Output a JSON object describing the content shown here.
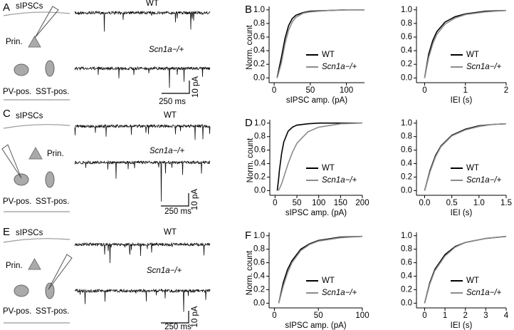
{
  "chart_data": [
    {
      "type": "line",
      "label": "B",
      "ylabel": "Norm. count",
      "xlabel": "sIPSC amp. (pA)",
      "x": [
        4,
        5,
        10,
        15,
        20,
        25,
        30,
        40,
        50,
        75,
        100,
        125
      ],
      "series": [
        {
          "name": "WT",
          "color": "#000000",
          "values": [
            0,
            0.05,
            0.3,
            0.58,
            0.77,
            0.87,
            0.92,
            0.96,
            0.98,
            0.99,
            1,
            1
          ]
        },
        {
          "name": "Scn1a−/+",
          "color": "#8c8c8c",
          "values": [
            0,
            0.03,
            0.22,
            0.5,
            0.7,
            0.82,
            0.89,
            0.95,
            0.97,
            0.99,
            1,
            1
          ]
        }
      ],
      "xlim": [
        -7,
        125
      ],
      "xticks": [
        0,
        50,
        100
      ],
      "ylim": [
        -0.07,
        1.05
      ],
      "yticks": [
        {
          "value": 0,
          "label": "0.0"
        },
        {
          "value": 0.2,
          "label": "0.2"
        },
        {
          "value": 0.4,
          "label": "0.4"
        },
        {
          "value": 0.6,
          "label": "0.6"
        },
        {
          "value": 0.8,
          "label": "0.8"
        },
        {
          "value": 1,
          "label": "1.0"
        }
      ]
    },
    {
      "type": "line",
      "xlabel": "IEI (s)",
      "x": [
        0,
        0.1,
        0.2,
        0.3,
        0.5,
        0.75,
        1,
        1.5,
        2
      ],
      "series": [
        {
          "name": "WT",
          "color": "#000000",
          "values": [
            0,
            0.35,
            0.55,
            0.68,
            0.82,
            0.9,
            0.94,
            0.98,
            0.99
          ]
        },
        {
          "name": "Scn1a−/+",
          "color": "#8c8c8c",
          "values": [
            0,
            0.3,
            0.5,
            0.64,
            0.79,
            0.88,
            0.93,
            0.97,
            0.99
          ]
        }
      ],
      "xlim": [
        -0.2,
        2
      ],
      "xticks": [
        0,
        1,
        2
      ],
      "ylim": [
        -0.07,
        1.05
      ],
      "yticks": [
        {
          "value": 0,
          "label": "0.0"
        },
        {
          "value": 0.2,
          "label": "0.2"
        },
        {
          "value": 0.4,
          "label": "0.4"
        },
        {
          "value": 0.6,
          "label": "0.6"
        },
        {
          "value": 0.8,
          "label": "0.8"
        },
        {
          "value": 1,
          "label": "1.0"
        }
      ]
    },
    {
      "type": "line",
      "label": "D",
      "ylabel": "Norm. count",
      "xlabel": "sIPSC amp. (pA)",
      "x": [
        5,
        8,
        10,
        15,
        20,
        30,
        40,
        50,
        75,
        100,
        150,
        200
      ],
      "series": [
        {
          "name": "WT",
          "color": "#000000",
          "values": [
            0,
            0.16,
            0.3,
            0.55,
            0.72,
            0.88,
            0.94,
            0.97,
            0.99,
            1,
            1,
            1
          ]
        },
        {
          "name": "Scn1a−/+",
          "color": "#8c8c8c",
          "values": [
            null,
            0,
            0.03,
            0.1,
            0.2,
            0.4,
            0.57,
            0.7,
            0.87,
            0.94,
            0.99,
            1
          ]
        }
      ],
      "xlim": [
        -12,
        200
      ],
      "xticks": [
        0,
        50,
        100,
        150,
        200
      ],
      "ylim": [
        -0.07,
        1.05
      ],
      "yticks": [
        {
          "value": 0,
          "label": "0.0"
        },
        {
          "value": 0.2,
          "label": "0.2"
        },
        {
          "value": 0.4,
          "label": "0.4"
        },
        {
          "value": 0.6,
          "label": "0.6"
        },
        {
          "value": 0.8,
          "label": "0.8"
        },
        {
          "value": 1,
          "label": "1.0"
        }
      ]
    },
    {
      "type": "line",
      "xlabel": "IEI (s)",
      "x": [
        0,
        0.1,
        0.2,
        0.3,
        0.5,
        0.75,
        1,
        1.25,
        1.5
      ],
      "series": [
        {
          "name": "WT",
          "color": "#000000",
          "values": [
            0,
            0.3,
            0.52,
            0.66,
            0.82,
            0.91,
            0.96,
            0.98,
            0.99
          ]
        },
        {
          "name": "Scn1a−/+",
          "color": "#8c8c8c",
          "values": [
            0,
            0.28,
            0.5,
            0.65,
            0.81,
            0.9,
            0.95,
            0.98,
            0.99
          ]
        }
      ],
      "xlim": [
        -0.15,
        1.5
      ],
      "xticks": [
        {
          "value": 0,
          "label": "0.0"
        },
        {
          "value": 0.5,
          "label": "0.5"
        },
        {
          "value": 1,
          "label": "1.0"
        },
        1.5
      ],
      "ylim": [
        -0.07,
        1.05
      ],
      "yticks": [
        {
          "value": 0,
          "label": "0.0"
        },
        {
          "value": 0.2,
          "label": "0.2"
        },
        {
          "value": 0.4,
          "label": "0.4"
        },
        {
          "value": 0.6,
          "label": "0.6"
        },
        {
          "value": 0.8,
          "label": "0.8"
        },
        {
          "value": 1,
          "label": "1.0"
        }
      ]
    },
    {
      "type": "line",
      "label": "F",
      "ylabel": "Norm. count",
      "xlabel": "sIPSC amp. (pA)",
      "x": [
        5,
        10,
        15,
        20,
        30,
        40,
        50,
        75,
        100
      ],
      "series": [
        {
          "name": "WT",
          "color": "#000000",
          "values": [
            0,
            0.3,
            0.5,
            0.63,
            0.8,
            0.88,
            0.93,
            0.98,
            0.99
          ]
        },
        {
          "name": "Scn1a−/+",
          "color": "#8c8c8c",
          "values": [
            0,
            0.25,
            0.45,
            0.6,
            0.78,
            0.87,
            0.92,
            0.97,
            0.99
          ]
        }
      ],
      "xlim": [
        -6,
        100
      ],
      "xticks": [
        0,
        50,
        100
      ],
      "ylim": [
        -0.07,
        1.05
      ],
      "yticks": [
        {
          "value": 0,
          "label": "0.0"
        },
        {
          "value": 0.2,
          "label": "0.2"
        },
        {
          "value": 0.4,
          "label": "0.4"
        },
        {
          "value": 0.6,
          "label": "0.6"
        },
        {
          "value": 0.8,
          "label": "0.8"
        },
        {
          "value": 1,
          "label": "1.0"
        }
      ]
    },
    {
      "type": "line",
      "xlabel": "IEI (s)",
      "x": [
        0,
        0.25,
        0.5,
        1,
        1.5,
        2,
        3,
        4
      ],
      "series": [
        {
          "name": "WT",
          "color": "#000000",
          "values": [
            0,
            0.3,
            0.5,
            0.72,
            0.84,
            0.9,
            0.96,
            0.99
          ]
        },
        {
          "name": "Scn1a−/+",
          "color": "#8c8c8c",
          "values": [
            0,
            0.28,
            0.48,
            0.7,
            0.83,
            0.9,
            0.96,
            0.99
          ]
        }
      ],
      "xlim": [
        -0.4,
        4
      ],
      "xticks": [
        0,
        1,
        2,
        3,
        4
      ],
      "ylim": [
        -0.07,
        1.05
      ],
      "yticks": [
        {
          "value": 0,
          "label": "0.0"
        },
        {
          "value": 0.2,
          "label": "0.2"
        },
        {
          "value": 0.4,
          "label": "0.4"
        },
        {
          "value": 0.6,
          "label": "0.6"
        },
        {
          "value": 0.8,
          "label": "0.8"
        },
        {
          "value": 1,
          "label": "1.0"
        }
      ]
    }
  ],
  "panels": [
    {
      "label": "A",
      "recording": "sIPSCs",
      "principal": "Prin.",
      "pv": "PV-pos.",
      "sst": "SST-pos.",
      "trace_labels": [
        "WT",
        "Scn1a−/+"
      ],
      "scale_y": "10 pA",
      "scale_x": "250 ms"
    },
    {
      "label": "C",
      "recording": "sIPSCs",
      "principal": "Prin.",
      "pv": "PV-pos.",
      "sst": "SST-pos.",
      "trace_labels": [
        "WT",
        "Scn1a−/+"
      ],
      "scale_y": "10 pA",
      "scale_x": "250 ms"
    },
    {
      "label": "E",
      "recording": "sIPSCs",
      "principal": "Prin.",
      "pv": "PV-pos.",
      "sst": "SST-pos.",
      "trace_labels": [
        "WT",
        "Scn1a−/+"
      ],
      "scale_y": "10 pA",
      "scale_x": "250 ms"
    }
  ]
}
